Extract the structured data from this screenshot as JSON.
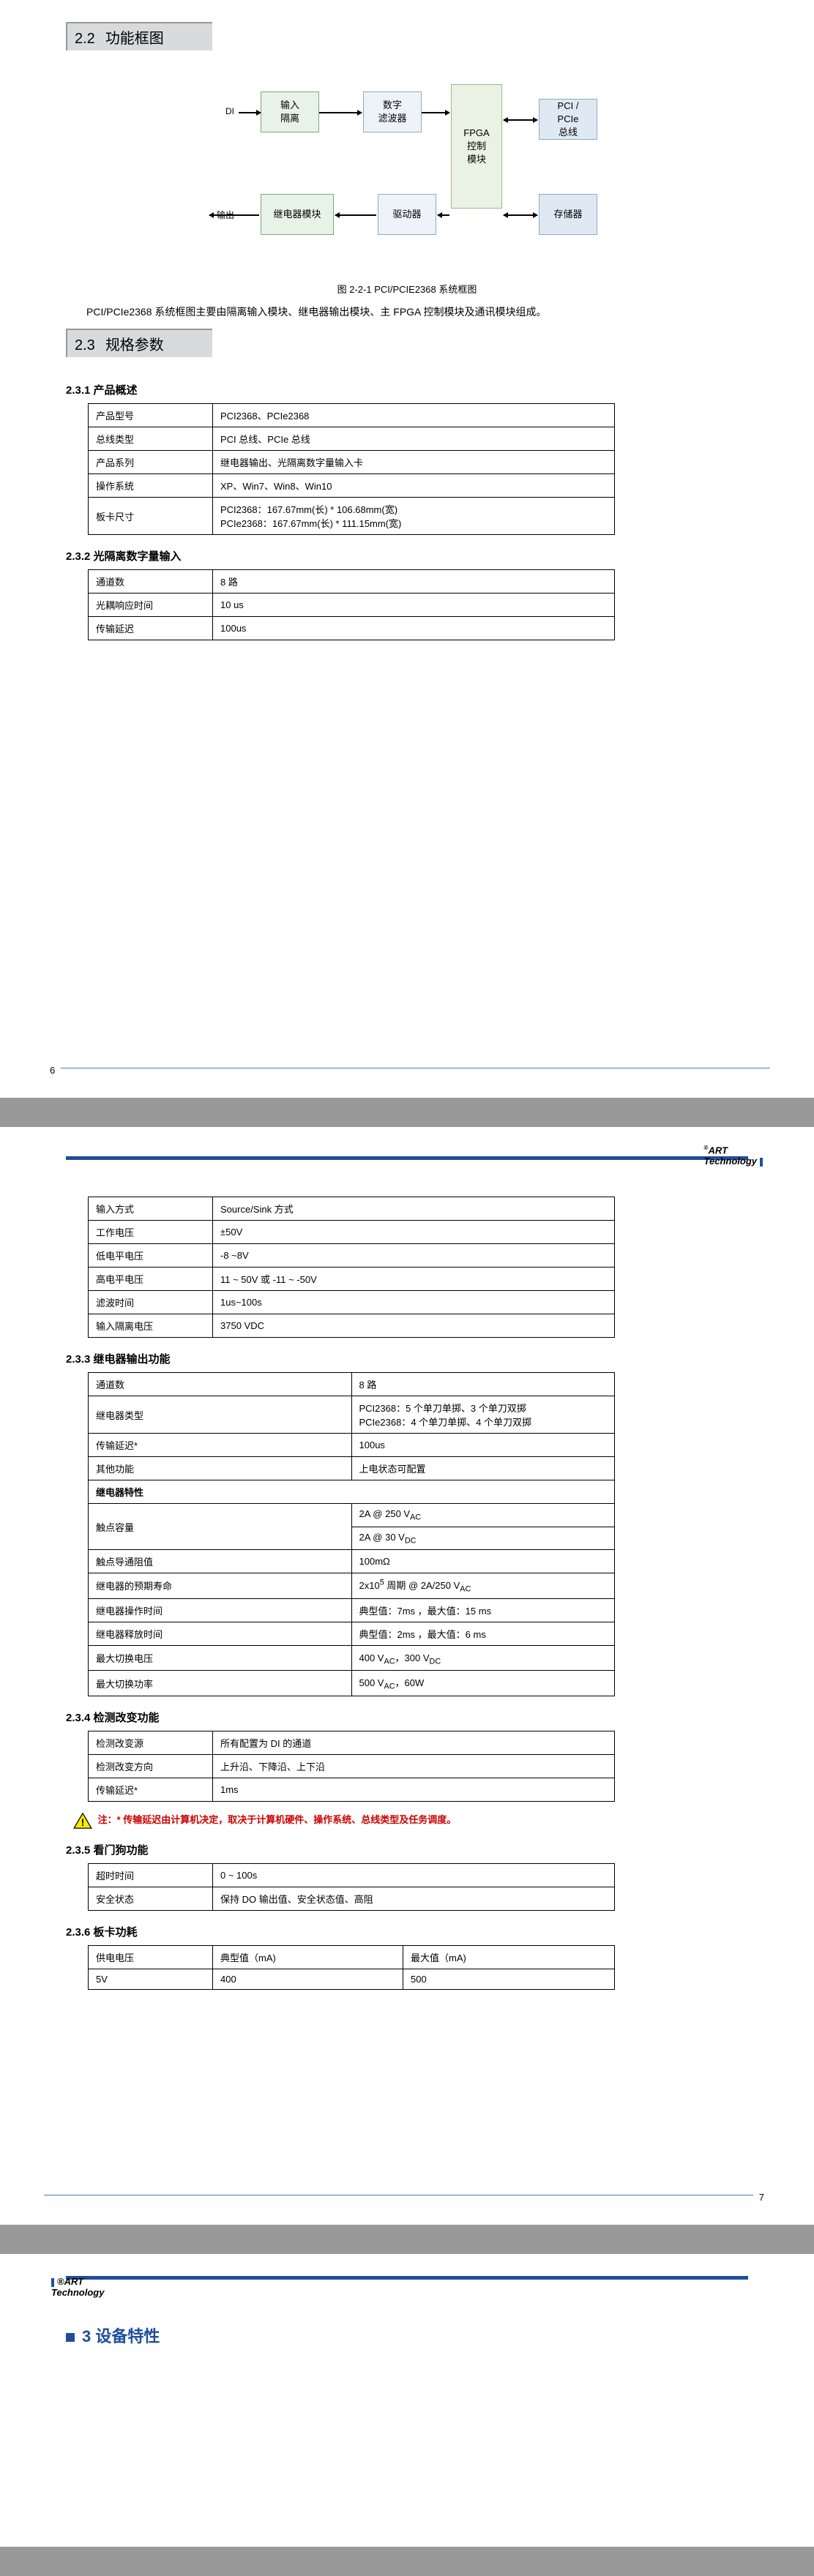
{
  "s22": {
    "num": "2.2",
    "title": "功能框图"
  },
  "diagram": {
    "di": "DI",
    "out": "输出",
    "b1": "输入\n隔离",
    "b2": "数字\n滤波器",
    "b3": "FPGA\n控制\n模块",
    "b4": "PCI /\nPCIe\n总线",
    "b5": "存储器",
    "b6": "继电器模块",
    "b7": "驱动器",
    "cap": "图 2-2-1 PCI/PCIE2368 系统框图"
  },
  "body22": "PCI/PCIe2368 系统框图主要由隔离输入模块、继电器输出模块、主 FPGA 控制模块及通讯模块组成。",
  "s23": {
    "num": "2.3",
    "title": "规格参数"
  },
  "s231": "2.3.1  产品概述",
  "t231": [
    [
      "产品型号",
      "PCI2368、PCIe2368"
    ],
    [
      "总线类型",
      "PCI 总线、PCIe 总线"
    ],
    [
      "产品系列",
      "继电器输出、光隔离数字量输入卡"
    ],
    [
      "操作系统",
      "XP、Win7、Win8、Win10"
    ],
    [
      "板卡尺寸",
      "PCI2368：167.67mm(长) * 106.68mm(宽)\nPCIe2368：167.67mm(长) * 111.15mm(宽)"
    ]
  ],
  "s232": "2.3.2  光隔离数字量输入",
  "t232": [
    [
      "通道数",
      "8 路"
    ],
    [
      "光耦响应时间",
      "10 us"
    ],
    [
      "传输延迟",
      "100us"
    ]
  ],
  "pg6": "6",
  "logo": "ART\nTechnology",
  "t232b": [
    [
      "输入方式",
      "Source/Sink 方式"
    ],
    [
      "工作电压",
      "±50V"
    ],
    [
      "低电平电压",
      "-8 ~8V"
    ],
    [
      "高电平电压",
      "11 ~ 50V 或  -11 ~ -50V"
    ],
    [
      "滤波时间",
      "1us~100s"
    ],
    [
      "输入隔离电压",
      "3750 VDC"
    ]
  ],
  "s233": "2.3.3  继电器输出功能",
  "t233": [
    [
      "通道数",
      "8 路"
    ],
    [
      "继电器类型",
      "PCI2368：5 个单刀单掷、3 个单刀双掷\nPCIe2368：4 个单刀单掷、4 个单刀双掷"
    ],
    [
      "传输延迟*",
      "100us"
    ],
    [
      "其他功能",
      "上电状态可配置"
    ],
    [
      "继电器特性",
      ""
    ],
    [
      "触点容量",
      "2A @ 250 V<sub>AC</sub>\n2A @ 30 V<sub>DC</sub>"
    ],
    [
      "触点导通阻值",
      "100mΩ"
    ],
    [
      "继电器的预期寿命",
      "2x10<sup>5</sup> 周期  @ 2A/250 V<sub>AC</sub>"
    ],
    [
      "继电器操作时间",
      "典型值：7ms  ，最大值：15 ms"
    ],
    [
      "继电器释放时间",
      "典型值：2ms  ，最大值：6 ms"
    ],
    [
      "最大切换电压",
      "400 V<sub>AC</sub>，300 V<sub>DC</sub>"
    ],
    [
      "最大切换功率",
      "500 V<sub>AC</sub>，60W"
    ]
  ],
  "s234": "2.3.4  检测改变功能",
  "t234": [
    [
      "检测改变源",
      "所有配置为 DI 的通道"
    ],
    [
      "检测改变方向",
      "上升沿、下降沿、上下沿"
    ],
    [
      "传输延迟*",
      "1ms"
    ]
  ],
  "note": "注：* 传输延迟由计算机决定，取决于计算机硬件、操作系统、总线类型及任务调度。",
  "s235": "2.3.5  看门狗功能",
  "t235": [
    [
      "超时时间",
      "0 ~ 100s"
    ],
    [
      "安全状态",
      "保持 DO 输出值、安全状态值、高阻"
    ]
  ],
  "s236": "2.3.6  板卡功耗",
  "t236h": [
    "供电电压",
    "典型值（mA)",
    "最大值（mA)"
  ],
  "t236": [
    [
      "5V",
      "400",
      "500"
    ]
  ],
  "pg7": "7",
  "ch3": "3 设备特性",
  "body3": ""
}
